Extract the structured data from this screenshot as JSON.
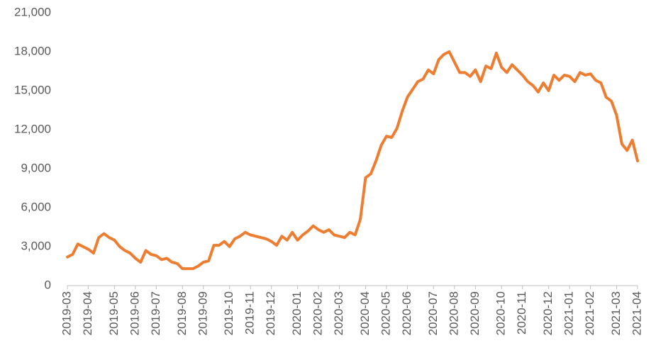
{
  "chart_data": {
    "type": "line",
    "categories": [
      "2019-03",
      null,
      null,
      null,
      "2019-04",
      null,
      null,
      null,
      null,
      "2019-05",
      null,
      null,
      null,
      "2019-06",
      null,
      null,
      null,
      "2019-07",
      null,
      null,
      null,
      null,
      "2019-08",
      null,
      null,
      null,
      "2019-09",
      null,
      null,
      null,
      null,
      "2019-10",
      null,
      null,
      null,
      "2019-11",
      null,
      null,
      null,
      "2019-12",
      null,
      null,
      null,
      null,
      "2020-01",
      null,
      null,
      null,
      "2020-02",
      null,
      null,
      null,
      "2020-03",
      null,
      null,
      null,
      null,
      "2020-04",
      null,
      null,
      null,
      "2020-05",
      null,
      null,
      null,
      "2020-06",
      null,
      null,
      null,
      null,
      "2020-07",
      null,
      null,
      null,
      "2020-08",
      null,
      null,
      null,
      "2020-09",
      null,
      null,
      null,
      null,
      "2020-10",
      null,
      null,
      null,
      "2020-11",
      null,
      null,
      null,
      null,
      "2020-12",
      null,
      null,
      null,
      "2021-01",
      null,
      null,
      null,
      "2021-02",
      null,
      null,
      null,
      null,
      "2021-03",
      null,
      null,
      null,
      "2021-04"
    ],
    "series": [
      {
        "color": "#ed7d31",
        "values": [
          2200,
          2400,
          3200,
          3000,
          2800,
          2500,
          3700,
          4000,
          3700,
          3500,
          3000,
          2700,
          2500,
          2100,
          1800,
          2700,
          2400,
          2300,
          2000,
          2100,
          1800,
          1700,
          1300,
          1300,
          1300,
          1500,
          1800,
          1900,
          3100,
          3100,
          3400,
          3000,
          3600,
          3800,
          4100,
          3900,
          3800,
          3700,
          3600,
          3400,
          3100,
          3800,
          3500,
          4100,
          3500,
          3900,
          4200,
          4600,
          4300,
          4100,
          4300,
          3900,
          3800,
          3700,
          4100,
          3900,
          5100,
          8300,
          8600,
          9600,
          10800,
          11500,
          11400,
          12100,
          13400,
          14500,
          15100,
          15700,
          15900,
          16600,
          16300,
          17400,
          17800,
          18000,
          17200,
          16400,
          16400,
          16100,
          16600,
          15700,
          16900,
          16700,
          17900,
          16800,
          16400,
          17000,
          16600,
          16200,
          15700,
          15400,
          14900,
          15600,
          15000,
          16200,
          15800,
          16200,
          16100,
          15700,
          16400,
          16200,
          16300,
          15800,
          15600,
          14500,
          14200,
          13100,
          10900,
          10400,
          11200,
          9600
        ]
      }
    ],
    "ylim": [
      0,
      21000
    ],
    "yticks": [
      0,
      {
        "value": 3000,
        "label": "3,000"
      },
      {
        "value": 6000,
        "label": "6,000"
      },
      {
        "value": 9000,
        "label": "9,000"
      },
      {
        "value": 12000,
        "label": "12,000"
      },
      {
        "value": 15000,
        "label": "15,000"
      },
      {
        "value": 18000,
        "label": "18,000"
      },
      {
        "value": 21000,
        "label": "21,000"
      }
    ],
    "grid": false
  }
}
